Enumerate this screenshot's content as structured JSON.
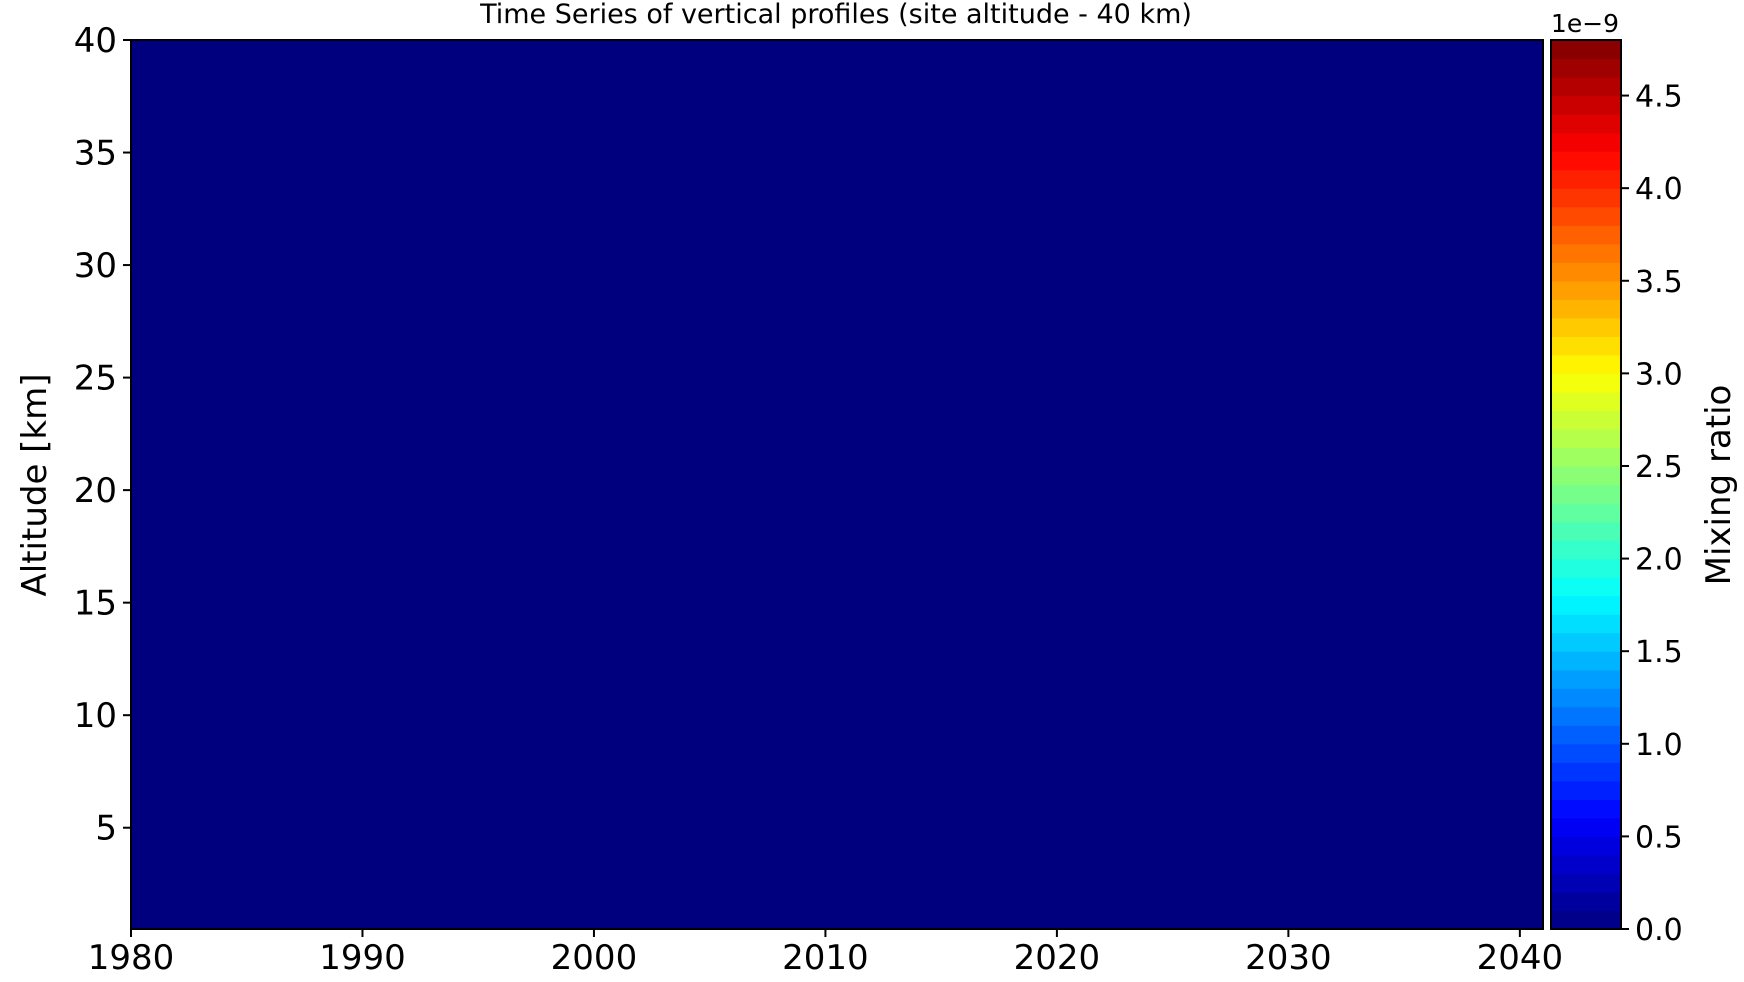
{
  "chart_data": {
    "type": "heatmap",
    "title": "Time Series of vertical profiles (site altitude - 40 km)",
    "xlabel": "",
    "ylabel": "Altitude [km]",
    "xlim": [
      1980,
      2041
    ],
    "ylim": [
      0.5,
      40
    ],
    "xticks": [
      1980,
      1990,
      2000,
      2010,
      2020,
      2030,
      2040
    ],
    "yticks": [
      5,
      10,
      15,
      20,
      25,
      30,
      35,
      40
    ],
    "field_value": 0.0,
    "field_color": "#00007f",
    "colorbar": {
      "label": "Mixing ratio",
      "offset_text": "1e−9",
      "range": [
        0.0,
        4.8
      ],
      "ticks": [
        "0.0",
        "0.5",
        "1.0",
        "1.5",
        "2.0",
        "2.5",
        "3.0",
        "3.5",
        "4.0",
        "4.5"
      ],
      "tick_values": [
        0.0,
        0.5,
        1.0,
        1.5,
        2.0,
        2.5,
        3.0,
        3.5,
        4.0,
        4.5
      ],
      "levels": 48,
      "colormap": "jet"
    }
  }
}
